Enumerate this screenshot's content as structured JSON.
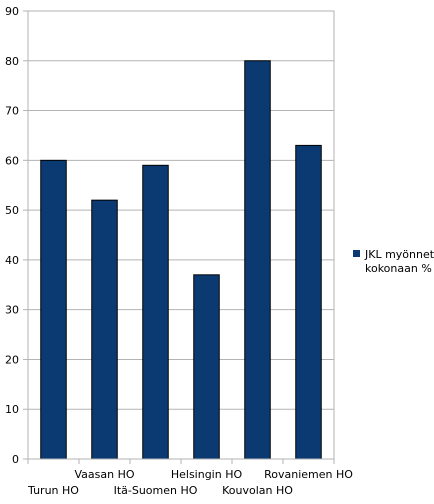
{
  "chart_data": {
    "type": "bar",
    "title": "",
    "xlabel": "",
    "ylabel": "",
    "categories": [
      "Turun HO",
      "Vaasan HO",
      "Itä-Suomen HO",
      "Helsingin HO",
      "Kouvolan HO",
      "Rovaniemen HO"
    ],
    "series": [
      {
        "name": "JKL myönnetty kokonaan %",
        "values": [
          60,
          52,
          59,
          37,
          80,
          63
        ],
        "color": "#0b3a73"
      }
    ],
    "ylim": [
      0,
      90
    ],
    "yticks": [
      0,
      10,
      20,
      30,
      40,
      50,
      60,
      70,
      80,
      90
    ],
    "grid": true,
    "legend_position": "right",
    "legend_lines": [
      "JKL myönnetty",
      "kokonaan %"
    ]
  }
}
